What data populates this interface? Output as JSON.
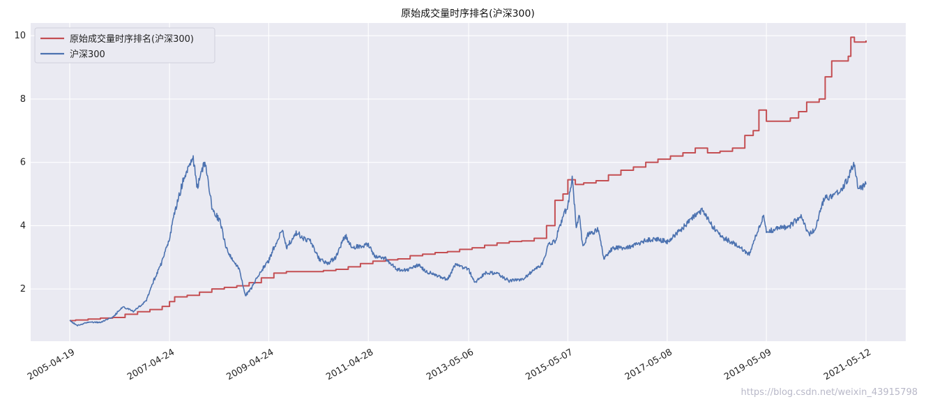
{
  "watermark": "https://blog.csdn.net/weixin_43915798",
  "colors": {
    "background": "#eaeaf2",
    "grid": "#ffffff",
    "red": "#c44e52",
    "blue": "#4c72b0"
  },
  "chart_data": {
    "type": "line",
    "title": "原始成交量时序排名(沪深300)",
    "xlabel": "",
    "ylabel": "",
    "x_tick_labels": [
      "2005-04-19",
      "2007-04-24",
      "2009-04-24",
      "2011-04-28",
      "2013-05-06",
      "2015-05-07",
      "2017-05-08",
      "2019-05-09",
      "2021-05-12"
    ],
    "y_ticks": [
      2,
      4,
      6,
      8,
      10
    ],
    "ylim": [
      0.35,
      10.4
    ],
    "grid": true,
    "legend_position": "top-left",
    "series": [
      {
        "name": "原始成交量时序排名(沪深300)",
        "color": "#c44e52",
        "points": [
          [
            "2005-04-19",
            1.0
          ],
          [
            "2005-06-01",
            1.02
          ],
          [
            "2005-09-01",
            1.05
          ],
          [
            "2005-12-01",
            1.08
          ],
          [
            "2006-03-01",
            1.1
          ],
          [
            "2006-06-01",
            1.2
          ],
          [
            "2006-09-01",
            1.28
          ],
          [
            "2006-12-01",
            1.35
          ],
          [
            "2007-03-01",
            1.45
          ],
          [
            "2007-04-24",
            1.6
          ],
          [
            "2007-06-01",
            1.75
          ],
          [
            "2007-09-01",
            1.8
          ],
          [
            "2007-12-01",
            1.9
          ],
          [
            "2008-03-01",
            2.0
          ],
          [
            "2008-06-01",
            2.05
          ],
          [
            "2008-09-01",
            2.1
          ],
          [
            "2008-12-01",
            2.2
          ],
          [
            "2009-03-01",
            2.35
          ],
          [
            "2009-06-01",
            2.5
          ],
          [
            "2009-09-01",
            2.55
          ],
          [
            "2009-12-01",
            2.55
          ],
          [
            "2010-03-01",
            2.55
          ],
          [
            "2010-06-01",
            2.58
          ],
          [
            "2010-09-01",
            2.62
          ],
          [
            "2010-12-01",
            2.7
          ],
          [
            "2011-03-01",
            2.8
          ],
          [
            "2011-06-01",
            2.88
          ],
          [
            "2011-09-01",
            2.92
          ],
          [
            "2011-12-01",
            2.95
          ],
          [
            "2012-03-01",
            3.05
          ],
          [
            "2012-06-01",
            3.1
          ],
          [
            "2012-09-01",
            3.15
          ],
          [
            "2012-12-01",
            3.18
          ],
          [
            "2013-03-01",
            3.25
          ],
          [
            "2013-06-01",
            3.3
          ],
          [
            "2013-09-01",
            3.38
          ],
          [
            "2013-12-01",
            3.45
          ],
          [
            "2014-03-01",
            3.5
          ],
          [
            "2014-06-01",
            3.52
          ],
          [
            "2014-09-01",
            3.6
          ],
          [
            "2014-12-01",
            4.0
          ],
          [
            "2015-02-01",
            4.8
          ],
          [
            "2015-04-01",
            5.0
          ],
          [
            "2015-05-07",
            5.45
          ],
          [
            "2015-07-01",
            5.3
          ],
          [
            "2015-09-01",
            5.35
          ],
          [
            "2015-12-01",
            5.42
          ],
          [
            "2016-03-01",
            5.6
          ],
          [
            "2016-06-01",
            5.75
          ],
          [
            "2016-09-01",
            5.85
          ],
          [
            "2016-12-01",
            6.0
          ],
          [
            "2017-03-01",
            6.1
          ],
          [
            "2017-06-01",
            6.2
          ],
          [
            "2017-09-01",
            6.3
          ],
          [
            "2017-12-01",
            6.45
          ],
          [
            "2018-03-01",
            6.3
          ],
          [
            "2018-06-01",
            6.35
          ],
          [
            "2018-09-01",
            6.45
          ],
          [
            "2018-12-01",
            6.85
          ],
          [
            "2019-02-01",
            7.0
          ],
          [
            "2019-03-15",
            7.65
          ],
          [
            "2019-05-09",
            7.3
          ],
          [
            "2019-08-01",
            7.3
          ],
          [
            "2019-11-01",
            7.4
          ],
          [
            "2020-01-01",
            7.6
          ],
          [
            "2020-03-01",
            7.9
          ],
          [
            "2020-06-01",
            8.0
          ],
          [
            "2020-07-15",
            8.7
          ],
          [
            "2020-09-01",
            9.2
          ],
          [
            "2020-12-01",
            9.2
          ],
          [
            "2021-01-01",
            9.35
          ],
          [
            "2021-01-20",
            9.95
          ],
          [
            "2021-02-15",
            9.8
          ],
          [
            "2021-05-12",
            9.85
          ]
        ]
      },
      {
        "name": "沪深300",
        "color": "#4c72b0",
        "points": [
          [
            "2005-04-19",
            1.0
          ],
          [
            "2005-06-15",
            0.85
          ],
          [
            "2005-09-01",
            0.95
          ],
          [
            "2005-12-01",
            0.95
          ],
          [
            "2006-03-01",
            1.1
          ],
          [
            "2006-05-15",
            1.45
          ],
          [
            "2006-08-01",
            1.3
          ],
          [
            "2006-11-01",
            1.6
          ],
          [
            "2007-01-01",
            2.3
          ],
          [
            "2007-02-15",
            2.7
          ],
          [
            "2007-04-24",
            3.6
          ],
          [
            "2007-06-01",
            4.4
          ],
          [
            "2007-08-01",
            5.4
          ],
          [
            "2007-10-16",
            6.1
          ],
          [
            "2007-11-15",
            5.2
          ],
          [
            "2007-12-20",
            5.8
          ],
          [
            "2008-01-14",
            6.0
          ],
          [
            "2008-03-01",
            4.6
          ],
          [
            "2008-05-01",
            4.1
          ],
          [
            "2008-06-15",
            3.3
          ],
          [
            "2008-08-01",
            2.9
          ],
          [
            "2008-09-20",
            2.6
          ],
          [
            "2008-11-04",
            1.8
          ],
          [
            "2008-12-15",
            2.0
          ],
          [
            "2009-02-15",
            2.5
          ],
          [
            "2009-04-24",
            2.9
          ],
          [
            "2009-06-01",
            3.3
          ],
          [
            "2009-08-04",
            3.9
          ],
          [
            "2009-09-01",
            3.3
          ],
          [
            "2009-11-20",
            3.8
          ],
          [
            "2010-01-01",
            3.6
          ],
          [
            "2010-03-01",
            3.5
          ],
          [
            "2010-05-01",
            2.95
          ],
          [
            "2010-07-01",
            2.8
          ],
          [
            "2010-09-01",
            3.0
          ],
          [
            "2010-11-08",
            3.7
          ],
          [
            "2011-01-01",
            3.3
          ],
          [
            "2011-04-28",
            3.4
          ],
          [
            "2011-06-20",
            3.0
          ],
          [
            "2011-09-01",
            2.95
          ],
          [
            "2011-12-01",
            2.6
          ],
          [
            "2012-02-01",
            2.6
          ],
          [
            "2012-05-01",
            2.75
          ],
          [
            "2012-07-01",
            2.55
          ],
          [
            "2012-09-01",
            2.45
          ],
          [
            "2012-12-01",
            2.3
          ],
          [
            "2013-02-01",
            2.8
          ],
          [
            "2013-05-06",
            2.6
          ],
          [
            "2013-06-25",
            2.2
          ],
          [
            "2013-09-01",
            2.5
          ],
          [
            "2013-12-01",
            2.5
          ],
          [
            "2014-03-01",
            2.25
          ],
          [
            "2014-06-01",
            2.3
          ],
          [
            "2014-09-01",
            2.6
          ],
          [
            "2014-11-01",
            2.8
          ],
          [
            "2014-12-15",
            3.4
          ],
          [
            "2015-02-01",
            3.5
          ],
          [
            "2015-04-01",
            4.3
          ],
          [
            "2015-05-07",
            4.6
          ],
          [
            "2015-06-08",
            5.55
          ],
          [
            "2015-07-08",
            4.0
          ],
          [
            "2015-08-01",
            4.3
          ],
          [
            "2015-08-26",
            3.3
          ],
          [
            "2015-10-01",
            3.7
          ],
          [
            "2015-12-20",
            3.9
          ],
          [
            "2016-01-28",
            2.95
          ],
          [
            "2016-04-01",
            3.3
          ],
          [
            "2016-07-01",
            3.3
          ],
          [
            "2016-10-01",
            3.4
          ],
          [
            "2016-12-01",
            3.55
          ],
          [
            "2017-03-01",
            3.55
          ],
          [
            "2017-05-08",
            3.5
          ],
          [
            "2017-08-01",
            3.8
          ],
          [
            "2017-11-01",
            4.2
          ],
          [
            "2018-01-24",
            4.5
          ],
          [
            "2018-04-01",
            4.0
          ],
          [
            "2018-07-01",
            3.6
          ],
          [
            "2018-10-01",
            3.4
          ],
          [
            "2019-01-03",
            3.1
          ],
          [
            "2019-03-01",
            3.8
          ],
          [
            "2019-04-19",
            4.3
          ],
          [
            "2019-05-09",
            3.8
          ],
          [
            "2019-08-01",
            3.9
          ],
          [
            "2019-11-01",
            4.0
          ],
          [
            "2020-01-15",
            4.3
          ],
          [
            "2020-03-19",
            3.7
          ],
          [
            "2020-05-01",
            3.9
          ],
          [
            "2020-07-10",
            4.9
          ],
          [
            "2020-09-01",
            4.9
          ],
          [
            "2020-11-01",
            5.1
          ],
          [
            "2021-01-01",
            5.5
          ],
          [
            "2021-02-10",
            6.0
          ],
          [
            "2021-03-10",
            5.3
          ],
          [
            "2021-04-01",
            5.2
          ],
          [
            "2021-05-12",
            5.3
          ]
        ]
      }
    ]
  }
}
